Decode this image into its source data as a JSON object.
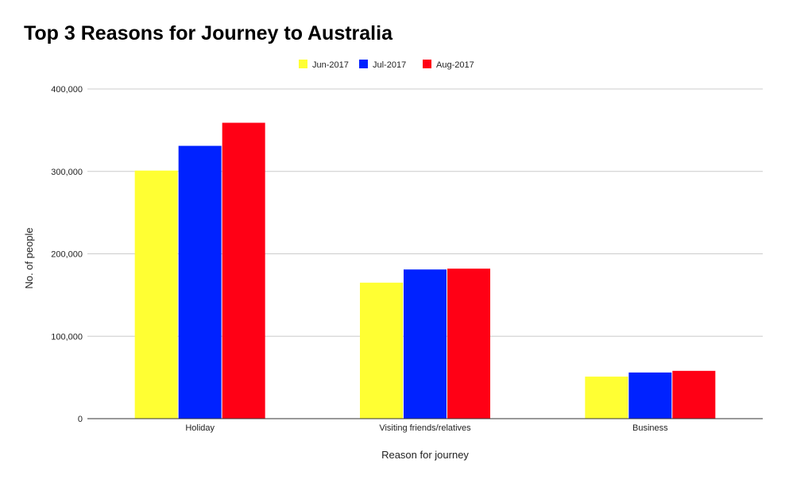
{
  "chart_data": {
    "type": "bar",
    "title": "Top 3 Reasons for Journey to Australia",
    "xlabel": "Reason for journey",
    "ylabel": "No. of people",
    "categories": [
      "Holiday",
      "Visiting friends/relatives",
      "Business"
    ],
    "series": [
      {
        "name": "Jun-2017",
        "color": "#ffff33",
        "values": [
          301000,
          165000,
          51000
        ]
      },
      {
        "name": "Jul-2017",
        "color": "#0022ff",
        "values": [
          331000,
          181000,
          56000
        ]
      },
      {
        "name": "Aug-2017",
        "color": "#ff0015",
        "values": [
          359000,
          182000,
          58000
        ]
      }
    ],
    "ylim": [
      0,
      400000
    ],
    "yticks": [
      0,
      100000,
      200000,
      300000,
      400000
    ],
    "ytick_labels": [
      "0",
      "100,000",
      "200,000",
      "300,000",
      "400,000"
    ],
    "grid": true,
    "legend_position": "top-center"
  }
}
